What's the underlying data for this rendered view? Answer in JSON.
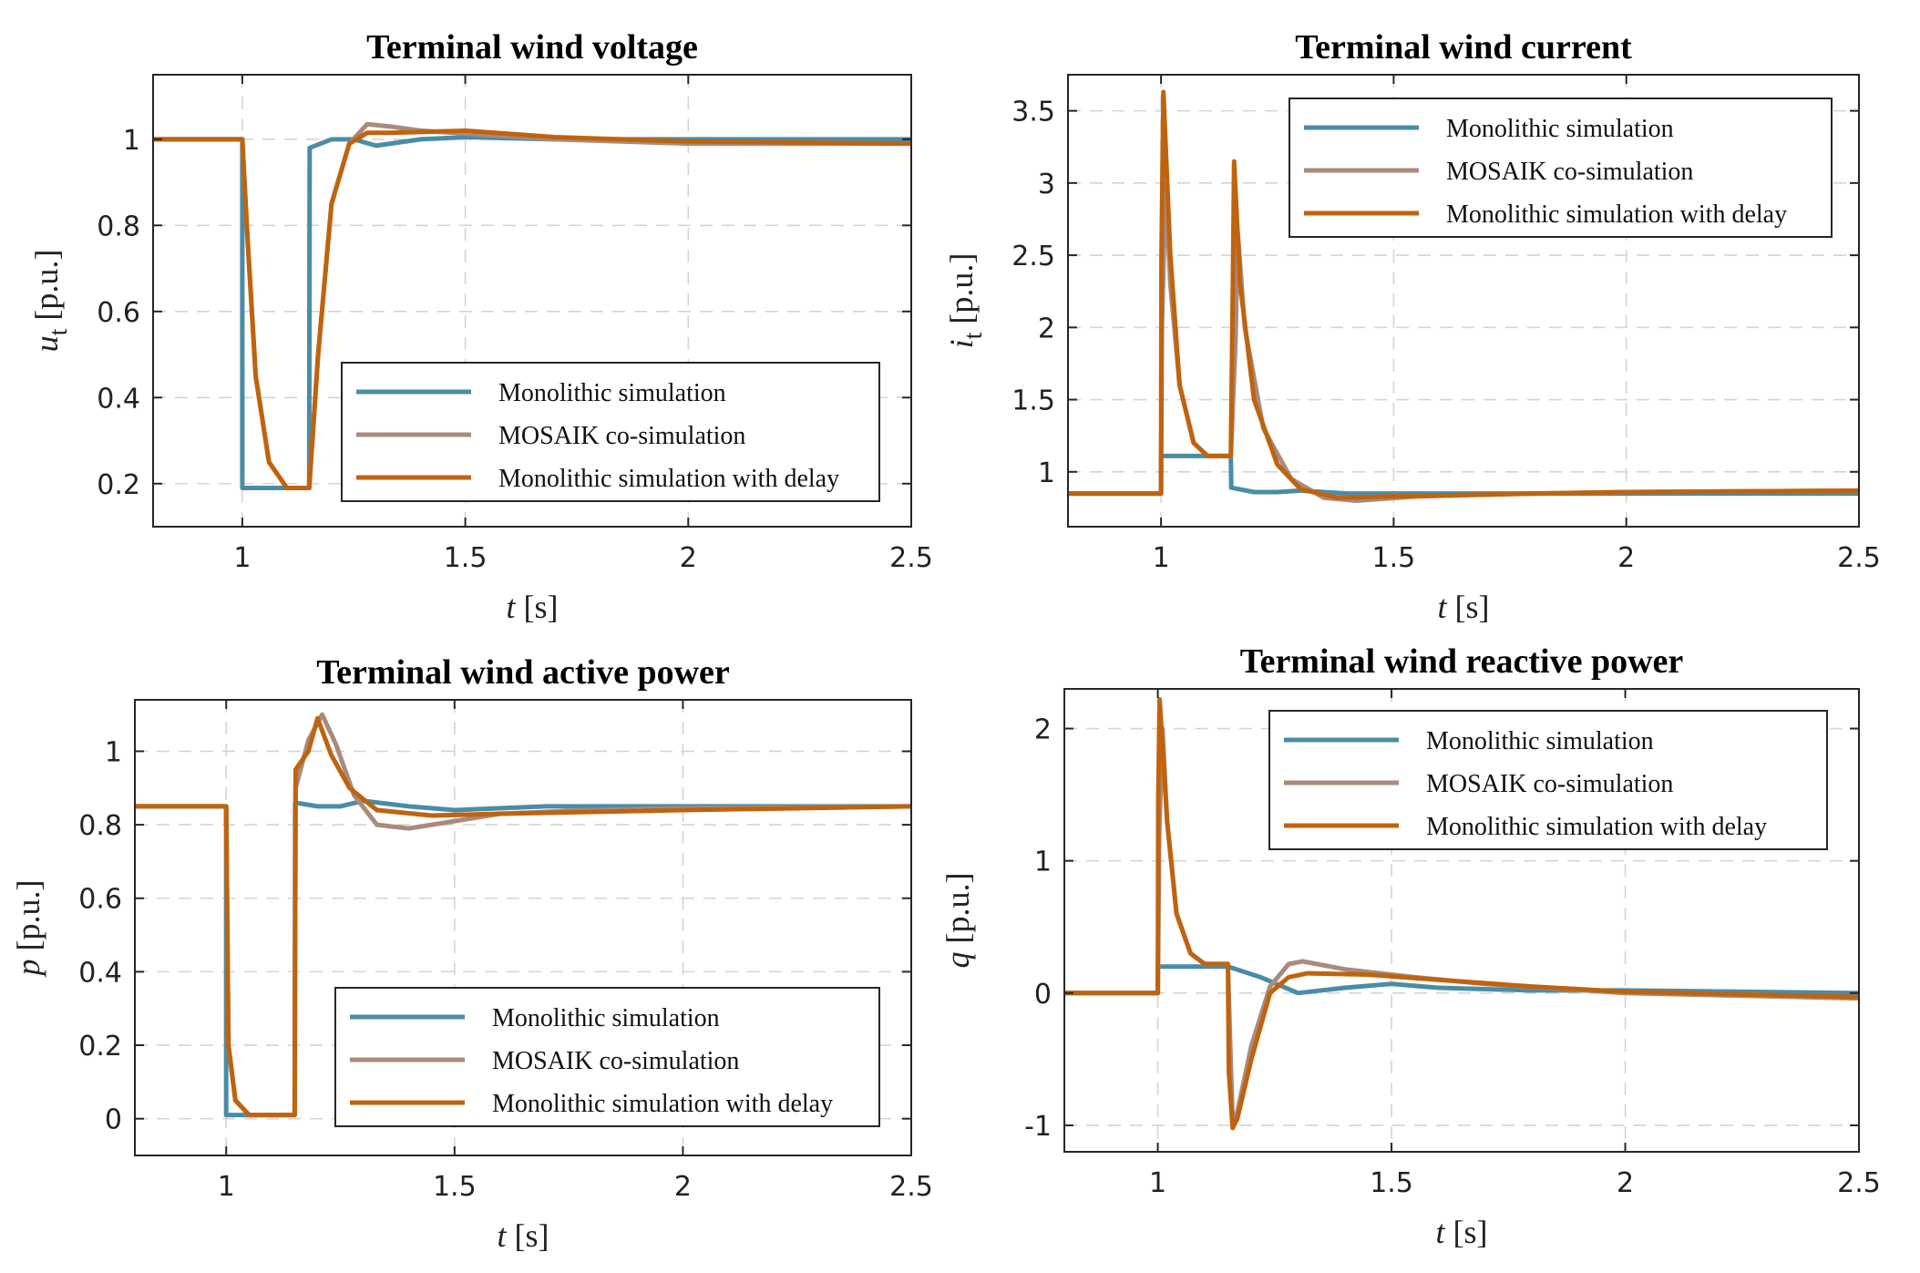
{
  "colors": {
    "monolithic": "#4a8ca8",
    "mosaik": "#a88b7e",
    "delay": "#c0630e"
  },
  "legend": [
    "Monolithic simulation",
    "MOSAIK co-simulation",
    "Monolithic simulation with delay"
  ],
  "chart_data": [
    {
      "id": "voltage",
      "type": "line",
      "title": "Terminal wind voltage",
      "xlabel": "t [s]",
      "ylabel": "u_t [p.u.]",
      "ylabel_main": "u",
      "ylabel_sub": "t",
      "ylabel_unit": " [p.u.]",
      "xlabel_main": "t",
      "xlabel_unit": " [s]",
      "xlim": [
        0.8,
        2.5
      ],
      "ylim": [
        0.1,
        1.15
      ],
      "xticks": [
        1,
        1.5,
        2,
        2.5
      ],
      "xtick_labels": [
        "1",
        "1.5",
        "2",
        "2.5"
      ],
      "yticks": [
        0.2,
        0.4,
        0.6,
        0.8,
        1
      ],
      "ytick_labels": [
        "0.2",
        "0.4",
        "0.6",
        "0.8",
        "1"
      ],
      "grid": true,
      "legend_position": "lower-right",
      "series": [
        {
          "name": "Monolithic simulation",
          "color": "#4a8ca8",
          "points": [
            [
              0.8,
              1
            ],
            [
              1.0,
              1
            ],
            [
              1.0,
              0.19
            ],
            [
              1.15,
              0.19
            ],
            [
              1.151,
              0.98
            ],
            [
              1.2,
              1.0
            ],
            [
              1.25,
              1.0
            ],
            [
              1.3,
              0.985
            ],
            [
              1.4,
              1.0
            ],
            [
              1.5,
              1.005
            ],
            [
              1.7,
              1.0
            ],
            [
              2.0,
              1.0
            ],
            [
              2.5,
              1.0
            ]
          ]
        },
        {
          "name": "MOSAIK co-simulation",
          "color": "#a88b7e",
          "points": [
            [
              0.8,
              1
            ],
            [
              1.0,
              1
            ],
            [
              1.01,
              0.8
            ],
            [
              1.03,
              0.45
            ],
            [
              1.06,
              0.25
            ],
            [
              1.1,
              0.19
            ],
            [
              1.15,
              0.19
            ],
            [
              1.17,
              0.5
            ],
            [
              1.2,
              0.85
            ],
            [
              1.24,
              0.99
            ],
            [
              1.28,
              1.035
            ],
            [
              1.33,
              1.03
            ],
            [
              1.4,
              1.02
            ],
            [
              1.55,
              1.01
            ],
            [
              1.7,
              1.0
            ],
            [
              2.0,
              0.99
            ],
            [
              2.5,
              0.99
            ]
          ]
        },
        {
          "name": "Monolithic simulation with delay",
          "color": "#c0630e",
          "points": [
            [
              0.8,
              1
            ],
            [
              1.0,
              1
            ],
            [
              1.01,
              0.8
            ],
            [
              1.03,
              0.45
            ],
            [
              1.06,
              0.25
            ],
            [
              1.1,
              0.19
            ],
            [
              1.15,
              0.19
            ],
            [
              1.17,
              0.5
            ],
            [
              1.2,
              0.85
            ],
            [
              1.24,
              0.99
            ],
            [
              1.28,
              1.015
            ],
            [
              1.33,
              1.015
            ],
            [
              1.5,
              1.02
            ],
            [
              1.7,
              1.005
            ],
            [
              2.0,
              0.995
            ],
            [
              2.5,
              0.99
            ]
          ]
        }
      ]
    },
    {
      "id": "current",
      "type": "line",
      "title": "Terminal wind current",
      "xlabel": "t [s]",
      "ylabel": "i_t [p.u.]",
      "ylabel_main": "i",
      "ylabel_sub": "t",
      "ylabel_unit": " [p.u.]",
      "xlabel_main": "t",
      "xlabel_unit": " [s]",
      "xlim": [
        0.8,
        2.5
      ],
      "ylim": [
        0.62,
        3.75
      ],
      "xticks": [
        1,
        1.5,
        2,
        2.5
      ],
      "xtick_labels": [
        "1",
        "1.5",
        "2",
        "2.5"
      ],
      "yticks": [
        1,
        1.5,
        2,
        2.5,
        3,
        3.5
      ],
      "ytick_labels": [
        "1",
        "1.5",
        "2",
        "2.5",
        "3",
        "3.5"
      ],
      "grid": true,
      "legend_position": "top-right",
      "series": [
        {
          "name": "Monolithic simulation",
          "color": "#4a8ca8",
          "points": [
            [
              0.8,
              0.85
            ],
            [
              1.0,
              0.85
            ],
            [
              1.0,
              1.11
            ],
            [
              1.15,
              1.11
            ],
            [
              1.151,
              0.89
            ],
            [
              1.2,
              0.86
            ],
            [
              1.25,
              0.86
            ],
            [
              1.3,
              0.87
            ],
            [
              1.4,
              0.85
            ],
            [
              1.6,
              0.85
            ],
            [
              2.0,
              0.85
            ],
            [
              2.5,
              0.85
            ]
          ]
        },
        {
          "name": "MOSAIK co-simulation",
          "color": "#a88b7e",
          "points": [
            [
              0.8,
              0.85
            ],
            [
              1.0,
              0.85
            ],
            [
              1.002,
              2.0
            ],
            [
              1.01,
              3.0
            ],
            [
              1.02,
              2.3
            ],
            [
              1.04,
              1.6
            ],
            [
              1.07,
              1.2
            ],
            [
              1.1,
              1.11
            ],
            [
              1.15,
              1.11
            ],
            [
              1.16,
              1.9
            ],
            [
              1.165,
              2.65
            ],
            [
              1.18,
              2.0
            ],
            [
              1.22,
              1.3
            ],
            [
              1.28,
              0.95
            ],
            [
              1.35,
              0.82
            ],
            [
              1.42,
              0.8
            ],
            [
              1.55,
              0.83
            ],
            [
              1.8,
              0.85
            ],
            [
              2.0,
              0.86
            ],
            [
              2.5,
              0.87
            ]
          ]
        },
        {
          "name": "Monolithic simulation with delay",
          "color": "#c0630e",
          "points": [
            [
              0.8,
              0.85
            ],
            [
              1.0,
              0.85
            ],
            [
              1.001,
              2.5
            ],
            [
              1.005,
              3.63
            ],
            [
              1.02,
              2.5
            ],
            [
              1.04,
              1.6
            ],
            [
              1.07,
              1.2
            ],
            [
              1.1,
              1.11
            ],
            [
              1.15,
              1.11
            ],
            [
              1.155,
              2.5
            ],
            [
              1.157,
              3.15
            ],
            [
              1.17,
              2.3
            ],
            [
              1.2,
              1.5
            ],
            [
              1.25,
              1.05
            ],
            [
              1.3,
              0.88
            ],
            [
              1.38,
              0.82
            ],
            [
              1.5,
              0.83
            ],
            [
              1.8,
              0.85
            ],
            [
              2.0,
              0.86
            ],
            [
              2.5,
              0.87
            ]
          ]
        }
      ]
    },
    {
      "id": "active",
      "type": "line",
      "title": "Terminal wind active power",
      "xlabel": "t [s]",
      "ylabel": "p [p.u.]",
      "ylabel_main": "p",
      "ylabel_sub": "",
      "ylabel_unit": " [p.u.]",
      "xlabel_main": "t",
      "xlabel_unit": " [s]",
      "xlim": [
        0.8,
        2.5
      ],
      "ylim": [
        -0.1,
        1.14
      ],
      "xticks": [
        1,
        1.5,
        2,
        2.5
      ],
      "xtick_labels": [
        "1",
        "1.5",
        "2",
        "2.5"
      ],
      "yticks": [
        0,
        0.2,
        0.4,
        0.6,
        0.8,
        1
      ],
      "ytick_labels": [
        "0",
        "0.2",
        "0.4",
        "0.6",
        "0.8",
        "1"
      ],
      "grid": true,
      "legend_position": "lower-right",
      "series": [
        {
          "name": "Monolithic simulation",
          "color": "#4a8ca8",
          "points": [
            [
              0.8,
              0.85
            ],
            [
              1.0,
              0.85
            ],
            [
              1.0,
              0.01
            ],
            [
              1.15,
              0.01
            ],
            [
              1.151,
              0.86
            ],
            [
              1.2,
              0.85
            ],
            [
              1.25,
              0.85
            ],
            [
              1.3,
              0.865
            ],
            [
              1.4,
              0.85
            ],
            [
              1.5,
              0.84
            ],
            [
              1.7,
              0.85
            ],
            [
              2.0,
              0.85
            ],
            [
              2.5,
              0.85
            ]
          ]
        },
        {
          "name": "MOSAIK co-simulation",
          "color": "#a88b7e",
          "points": [
            [
              0.8,
              0.85
            ],
            [
              1.0,
              0.85
            ],
            [
              1.005,
              0.2
            ],
            [
              1.02,
              0.05
            ],
            [
              1.05,
              0.01
            ],
            [
              1.15,
              0.01
            ],
            [
              1.152,
              0.9
            ],
            [
              1.18,
              1.03
            ],
            [
              1.21,
              1.1
            ],
            [
              1.24,
              1.02
            ],
            [
              1.28,
              0.88
            ],
            [
              1.33,
              0.8
            ],
            [
              1.4,
              0.79
            ],
            [
              1.5,
              0.81
            ],
            [
              1.6,
              0.83
            ],
            [
              1.8,
              0.84
            ],
            [
              2.0,
              0.845
            ],
            [
              2.5,
              0.85
            ]
          ]
        },
        {
          "name": "Monolithic simulation with delay",
          "color": "#c0630e",
          "points": [
            [
              0.8,
              0.85
            ],
            [
              1.0,
              0.85
            ],
            [
              1.005,
              0.2
            ],
            [
              1.02,
              0.05
            ],
            [
              1.05,
              0.01
            ],
            [
              1.15,
              0.01
            ],
            [
              1.152,
              0.95
            ],
            [
              1.18,
              1.0
            ],
            [
              1.2,
              1.09
            ],
            [
              1.23,
              0.99
            ],
            [
              1.27,
              0.9
            ],
            [
              1.33,
              0.84
            ],
            [
              1.45,
              0.825
            ],
            [
              1.6,
              0.83
            ],
            [
              1.8,
              0.835
            ],
            [
              2.0,
              0.84
            ],
            [
              2.5,
              0.85
            ]
          ]
        }
      ]
    },
    {
      "id": "reactive",
      "type": "line",
      "title": "Terminal wind reactive power",
      "xlabel": "t [s]",
      "ylabel": "q [p.u.]",
      "ylabel_main": "q",
      "ylabel_sub": "",
      "ylabel_unit": " [p.u.]",
      "xlabel_main": "t",
      "xlabel_unit": " [s]",
      "xlim": [
        0.8,
        2.5
      ],
      "ylim": [
        -1.2,
        2.3
      ],
      "xticks": [
        1,
        1.5,
        2,
        2.5
      ],
      "xtick_labels": [
        "1",
        "1.5",
        "2",
        "2.5"
      ],
      "yticks": [
        -1,
        0,
        1,
        2
      ],
      "ytick_labels": [
        "-1",
        "0",
        "1",
        "2"
      ],
      "grid": true,
      "legend_position": "top-right",
      "series": [
        {
          "name": "Monolithic simulation",
          "color": "#4a8ca8",
          "points": [
            [
              0.8,
              0
            ],
            [
              1.0,
              0
            ],
            [
              1.0,
              0.2
            ],
            [
              1.15,
              0.2
            ],
            [
              1.22,
              0.12
            ],
            [
              1.3,
              0.0
            ],
            [
              1.4,
              0.04
            ],
            [
              1.5,
              0.07
            ],
            [
              1.6,
              0.04
            ],
            [
              1.8,
              0.02
            ],
            [
              2.0,
              0.02
            ],
            [
              2.5,
              0.0
            ]
          ]
        },
        {
          "name": "MOSAIK co-simulation",
          "color": "#a88b7e",
          "points": [
            [
              0.8,
              0
            ],
            [
              1.0,
              0
            ],
            [
              1.003,
              1.2
            ],
            [
              1.01,
              2.0
            ],
            [
              1.02,
              1.3
            ],
            [
              1.04,
              0.6
            ],
            [
              1.07,
              0.3
            ],
            [
              1.1,
              0.22
            ],
            [
              1.15,
              0.22
            ],
            [
              1.155,
              -0.4
            ],
            [
              1.16,
              -0.97
            ],
            [
              1.17,
              -0.9
            ],
            [
              1.2,
              -0.4
            ],
            [
              1.24,
              0.05
            ],
            [
              1.28,
              0.22
            ],
            [
              1.31,
              0.24
            ],
            [
              1.4,
              0.18
            ],
            [
              1.55,
              0.12
            ],
            [
              1.7,
              0.07
            ],
            [
              2.0,
              0.0
            ],
            [
              2.5,
              -0.04
            ]
          ]
        },
        {
          "name": "Monolithic simulation with delay",
          "color": "#c0630e",
          "points": [
            [
              0.8,
              0
            ],
            [
              1.0,
              0
            ],
            [
              1.001,
              1.5
            ],
            [
              1.004,
              2.22
            ],
            [
              1.02,
              1.3
            ],
            [
              1.04,
              0.6
            ],
            [
              1.07,
              0.3
            ],
            [
              1.1,
              0.22
            ],
            [
              1.15,
              0.22
            ],
            [
              1.152,
              -0.6
            ],
            [
              1.16,
              -1.02
            ],
            [
              1.17,
              -0.95
            ],
            [
              1.2,
              -0.5
            ],
            [
              1.24,
              0.0
            ],
            [
              1.28,
              0.12
            ],
            [
              1.32,
              0.15
            ],
            [
              1.45,
              0.14
            ],
            [
              1.6,
              0.1
            ],
            [
              1.8,
              0.05
            ],
            [
              2.0,
              0.01
            ],
            [
              2.5,
              -0.03
            ]
          ]
        }
      ]
    }
  ]
}
